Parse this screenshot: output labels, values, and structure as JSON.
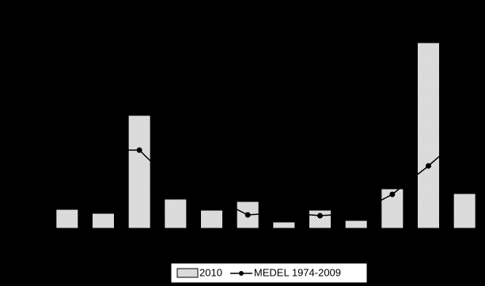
{
  "chart_data": {
    "type": "bar",
    "categories": [
      null,
      null,
      null,
      null,
      null,
      null,
      null,
      null,
      null,
      null,
      null,
      null
    ],
    "series": [
      {
        "name": "2010",
        "type": "bar",
        "color": "#e4e4e4",
        "values": [
          24,
          19,
          143,
          37,
          23,
          34,
          8,
          23,
          10,
          50,
          235,
          44
        ]
      },
      {
        "name": "MEDEL 1974-2009",
        "type": "line",
        "color": "#000000",
        "values": [
          40,
          99,
          99,
          54,
          40,
          17,
          20,
          16,
          19,
          43,
          79,
          119
        ]
      }
    ],
    "ylim": [
      0,
      250
    ],
    "legend": "bottom"
  }
}
